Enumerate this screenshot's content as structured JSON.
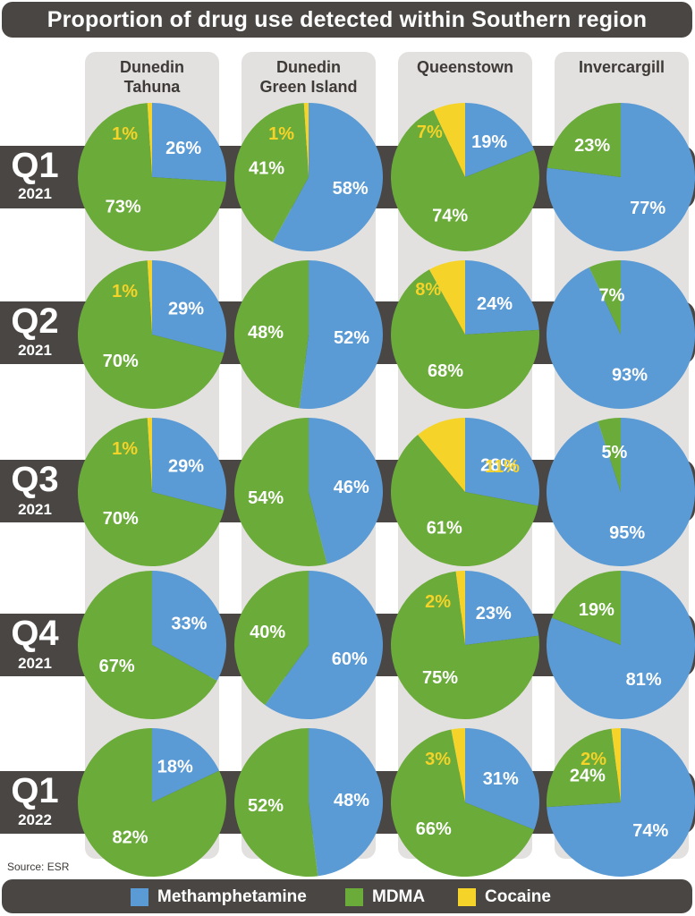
{
  "title": "Proportion of drug use detected within Southern region",
  "source": "Source: ESR",
  "colors": {
    "methamphetamine": "#5b9bd5",
    "mdma": "#6aab3a",
    "cocaine": "#f5d328",
    "label_light": "#ffffff",
    "label_cocaine": "#f5d328"
  },
  "legend": [
    {
      "name": "Methamphetamine",
      "color": "#5b9bd5"
    },
    {
      "name": "MDMA",
      "color": "#6aab3a"
    },
    {
      "name": "Cocaine",
      "color": "#f5d328"
    }
  ],
  "columns": [
    {
      "line1": "Dunedin",
      "line2": "Tahuna"
    },
    {
      "line1": "Dunedin",
      "line2": "Green Island"
    },
    {
      "line1": "Queenstown",
      "line2": ""
    },
    {
      "line1": "Invercargill",
      "line2": ""
    }
  ],
  "rows": [
    {
      "quarter": "Q1",
      "year": "2021"
    },
    {
      "quarter": "Q2",
      "year": "2021"
    },
    {
      "quarter": "Q3",
      "year": "2021"
    },
    {
      "quarter": "Q4",
      "year": "2021"
    },
    {
      "quarter": "Q1",
      "year": "2022"
    }
  ],
  "chart_data": {
    "type": "pie",
    "title": "Proportion of drug use detected within Southern region",
    "series_names": [
      "Methamphetamine",
      "MDMA",
      "Cocaine"
    ],
    "grid": [
      [
        {
          "location": "Dunedin Tahuna",
          "period": "Q1 2021",
          "values": [
            26,
            73,
            1
          ],
          "labels": [
            "26%",
            "73%",
            "1%"
          ]
        },
        {
          "location": "Dunedin Green Island",
          "period": "Q1 2021",
          "values": [
            58,
            41,
            1
          ],
          "labels": [
            "58%",
            "41%",
            "1%"
          ]
        },
        {
          "location": "Queenstown",
          "period": "Q1 2021",
          "values": [
            19,
            74,
            7
          ],
          "labels": [
            "19%",
            "74%",
            "7%"
          ]
        },
        {
          "location": "Invercargill",
          "period": "Q1 2021",
          "values": [
            77,
            23,
            0
          ],
          "labels": [
            "77%",
            "23%",
            ""
          ]
        }
      ],
      [
        {
          "location": "Dunedin Tahuna",
          "period": "Q2 2021",
          "values": [
            29,
            70,
            1
          ],
          "labels": [
            "29%",
            "70%",
            "1%"
          ]
        },
        {
          "location": "Dunedin Green Island",
          "period": "Q2 2021",
          "values": [
            52,
            48,
            0
          ],
          "labels": [
            "52%",
            "48%",
            ""
          ]
        },
        {
          "location": "Queenstown",
          "period": "Q2 2021",
          "values": [
            24,
            68,
            8
          ],
          "labels": [
            "24%",
            "68%",
            "8%"
          ]
        },
        {
          "location": "Invercargill",
          "period": "Q2 2021",
          "values": [
            93,
            7,
            0
          ],
          "labels": [
            "93%",
            "7%",
            ""
          ]
        }
      ],
      [
        {
          "location": "Dunedin Tahuna",
          "period": "Q3 2021",
          "values": [
            29,
            70,
            1
          ],
          "labels": [
            "29%",
            "70%",
            "1%"
          ]
        },
        {
          "location": "Dunedin Green Island",
          "period": "Q3 2021",
          "values": [
            46,
            54,
            0
          ],
          "labels": [
            "46%",
            "54%",
            ""
          ]
        },
        {
          "location": "Queenstown",
          "period": "Q3 2021",
          "values": [
            28,
            61,
            11
          ],
          "labels": [
            "28%",
            "61%",
            "11%"
          ]
        },
        {
          "location": "Invercargill",
          "period": "Q3 2021",
          "values": [
            95,
            5,
            0
          ],
          "labels": [
            "95%",
            "5%",
            ""
          ]
        }
      ],
      [
        {
          "location": "Dunedin Tahuna",
          "period": "Q4 2021",
          "values": [
            33,
            67,
            0
          ],
          "labels": [
            "33%",
            "67%",
            ""
          ]
        },
        {
          "location": "Dunedin Green Island",
          "period": "Q4 2021",
          "values": [
            60,
            40,
            0
          ],
          "labels": [
            "60%",
            "40%",
            ""
          ]
        },
        {
          "location": "Queenstown",
          "period": "Q4 2021",
          "values": [
            23,
            75,
            2
          ],
          "labels": [
            "23%",
            "75%",
            "2%"
          ]
        },
        {
          "location": "Invercargill",
          "period": "Q4 2021",
          "values": [
            81,
            19,
            0
          ],
          "labels": [
            "81%",
            "19%",
            ""
          ]
        }
      ],
      [
        {
          "location": "Dunedin Tahuna",
          "period": "Q1 2022",
          "values": [
            18,
            82,
            0
          ],
          "labels": [
            "18%",
            "82%",
            ""
          ]
        },
        {
          "location": "Dunedin Green Island",
          "period": "Q1 2022",
          "values": [
            48,
            52,
            0
          ],
          "labels": [
            "48%",
            "52%",
            ""
          ]
        },
        {
          "location": "Queenstown",
          "period": "Q1 2022",
          "values": [
            31,
            66,
            3
          ],
          "labels": [
            "31%",
            "66%",
            "3%"
          ]
        },
        {
          "location": "Invercargill",
          "period": "Q1 2022",
          "values": [
            74,
            24,
            2
          ],
          "labels": [
            "74%",
            "24%",
            "2%"
          ]
        }
      ]
    ]
  }
}
